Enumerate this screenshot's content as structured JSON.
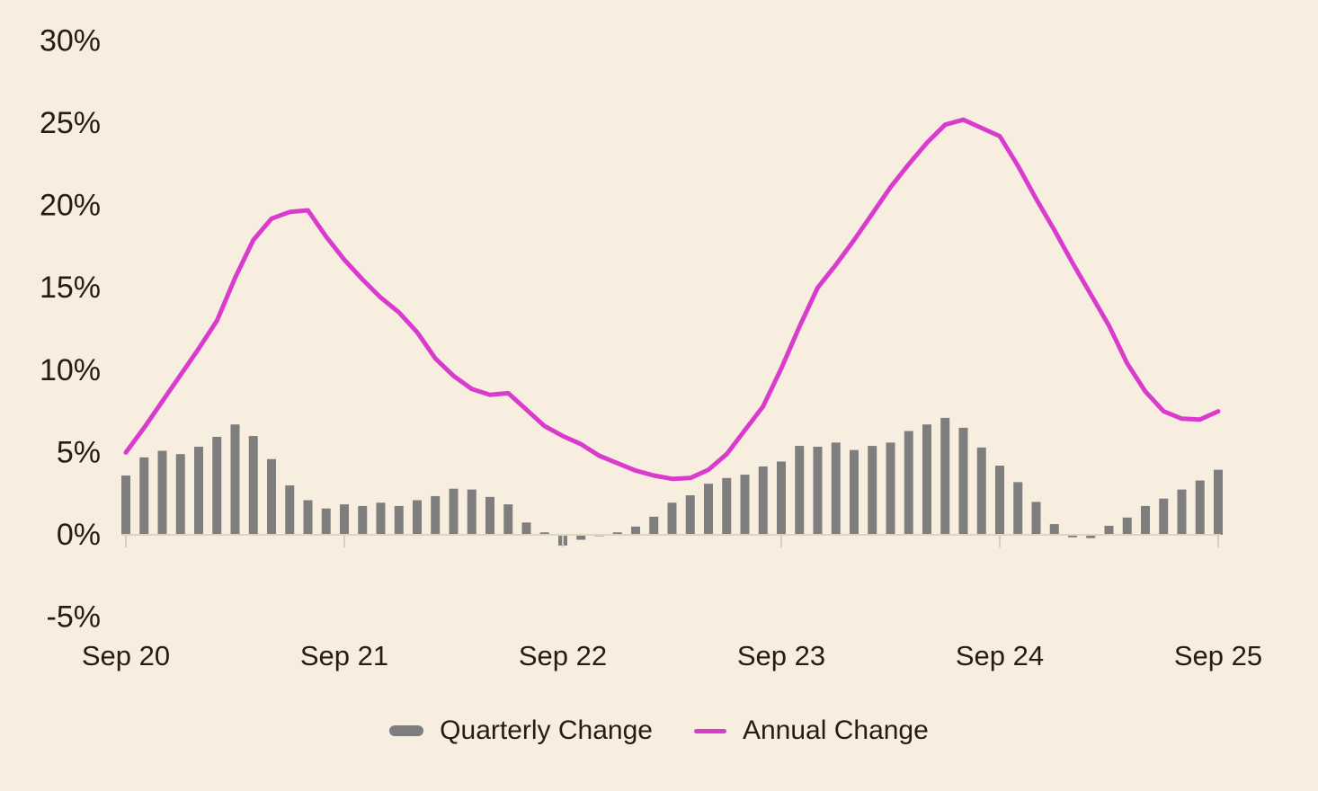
{
  "chart_data": {
    "type": "bar+line",
    "title": "",
    "xlabel": "",
    "ylabel": "",
    "ylim": [
      -5,
      30
    ],
    "grid": false,
    "legend_position": "bottom",
    "background_color": "#f7eee0",
    "axis_line_color": "#ded4c2",
    "tick_color": "#d8cebc",
    "text_color": "#261c11",
    "y_ticks": [
      30,
      25,
      20,
      15,
      10,
      5,
      0,
      -5
    ],
    "y_tick_suffix": "%",
    "x_ticks": [
      {
        "label": "Sep 20",
        "index": 0
      },
      {
        "label": "Sep 21",
        "index": 12
      },
      {
        "label": "Sep 22",
        "index": 24
      },
      {
        "label": "Sep 23",
        "index": 36
      },
      {
        "label": "Sep 24",
        "index": 48
      },
      {
        "label": "Sep 25",
        "index": 60
      }
    ],
    "categories": [
      "2020-09",
      "2020-10",
      "2020-11",
      "2020-12",
      "2021-01",
      "2021-02",
      "2021-03",
      "2021-04",
      "2021-05",
      "2021-06",
      "2021-07",
      "2021-08",
      "2021-09",
      "2021-10",
      "2021-11",
      "2021-12",
      "2022-01",
      "2022-02",
      "2022-03",
      "2022-04",
      "2022-05",
      "2022-06",
      "2022-07",
      "2022-08",
      "2022-09",
      "2022-10",
      "2022-11",
      "2022-12",
      "2023-01",
      "2023-02",
      "2023-03",
      "2023-04",
      "2023-05",
      "2023-06",
      "2023-07",
      "2023-08",
      "2023-09",
      "2023-10",
      "2023-11",
      "2023-12",
      "2024-01",
      "2024-02",
      "2024-03",
      "2024-04",
      "2024-05",
      "2024-06",
      "2024-07",
      "2024-08",
      "2024-09",
      "2024-10",
      "2024-11",
      "2024-12",
      "2025-01",
      "2025-02",
      "2025-03",
      "2025-04",
      "2025-05",
      "2025-06",
      "2025-07",
      "2025-08",
      "2025-09"
    ],
    "series": [
      {
        "name": "Quarterly Change",
        "type": "bar",
        "color": "#7e7e7e",
        "values": [
          3.6,
          4.7,
          5.1,
          4.9,
          5.35,
          5.95,
          6.7,
          6.0,
          4.6,
          3.0,
          2.1,
          1.6,
          1.85,
          1.75,
          1.95,
          1.75,
          2.1,
          2.35,
          2.8,
          2.75,
          2.3,
          1.85,
          0.75,
          0.15,
          -0.65,
          -0.3,
          -0.08,
          0.15,
          0.5,
          1.1,
          1.95,
          2.4,
          3.1,
          3.45,
          3.65,
          4.15,
          4.45,
          5.4,
          5.35,
          5.6,
          5.15,
          5.4,
          5.6,
          6.3,
          6.7,
          7.1,
          6.5,
          5.3,
          4.2,
          3.2,
          2.0,
          0.65,
          -0.15,
          -0.2,
          0.55,
          1.05,
          1.75,
          2.2,
          2.75,
          3.3,
          3.95
        ]
      },
      {
        "name": "Annual Change",
        "type": "line",
        "color": "#d93ccd",
        "values": [
          5.0,
          6.5,
          8.1,
          9.7,
          11.3,
          13.0,
          15.6,
          17.9,
          19.2,
          19.6,
          19.7,
          18.1,
          16.7,
          15.5,
          14.4,
          13.5,
          12.3,
          10.7,
          9.65,
          8.85,
          8.5,
          8.6,
          7.6,
          6.6,
          6.0,
          5.5,
          4.8,
          4.35,
          3.9,
          3.6,
          3.4,
          3.45,
          3.95,
          4.9,
          6.35,
          7.8,
          10.1,
          12.65,
          15.0,
          16.4,
          17.9,
          19.5,
          21.1,
          22.5,
          23.8,
          24.9,
          25.2,
          24.7,
          24.2,
          22.4,
          20.4,
          18.5,
          16.5,
          14.6,
          12.7,
          10.4,
          8.7,
          7.5,
          7.05,
          7.0,
          7.5
        ]
      }
    ]
  }
}
